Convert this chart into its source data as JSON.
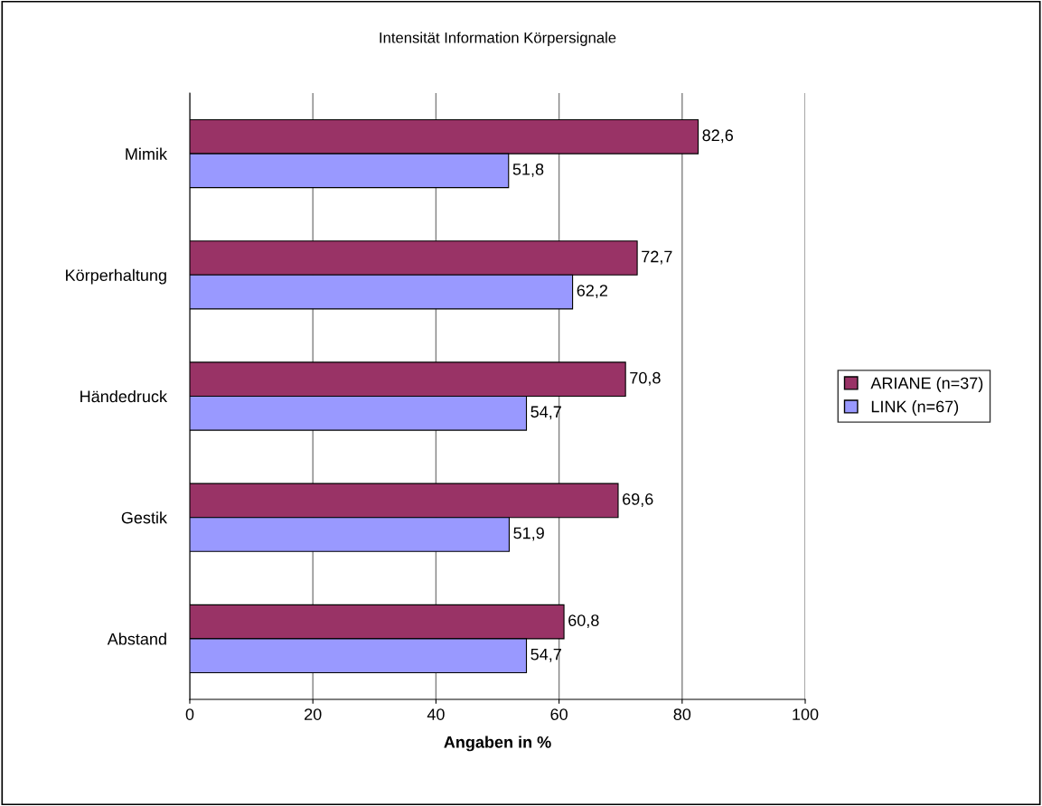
{
  "chart_data": {
    "type": "bar",
    "orientation": "horizontal",
    "title": "Intensität Information Körpersignale",
    "xlabel": "Angaben in %",
    "categories": [
      "Mimik",
      "Körperhaltung",
      "Händedruck",
      "Gestik",
      "Abstand"
    ],
    "series": [
      {
        "name": "ARIANE (n=37)",
        "color": "#993366",
        "values": [
          82.6,
          72.7,
          70.8,
          69.6,
          60.8
        ],
        "value_labels": [
          "82,6",
          "72,7",
          "70,8",
          "69,6",
          "60,8"
        ]
      },
      {
        "name": "LINK (n=67)",
        "color": "#9999ff",
        "values": [
          51.8,
          62.2,
          54.7,
          51.9,
          54.7
        ],
        "value_labels": [
          "51,8",
          "62,2",
          "54,7",
          "51,9",
          "54,7"
        ]
      }
    ],
    "xlim": [
      0,
      100
    ],
    "xticks": [
      0,
      20,
      40,
      60,
      80,
      100
    ],
    "grid": "x",
    "legend": "right"
  }
}
